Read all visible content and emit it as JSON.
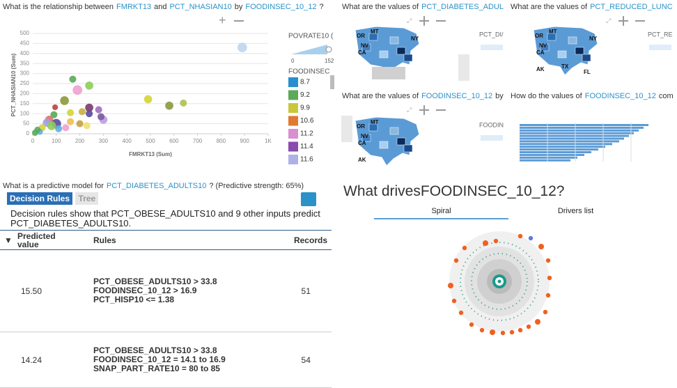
{
  "scatter_panel": {
    "question": [
      "What is the relationship between",
      "FMRKT13",
      "and",
      "PCT_NHASIAN10",
      "by",
      "FOODINSEC_10_12",
      "?"
    ]
  },
  "chart_data": {
    "type": "scatter",
    "x_label": "FMRKT13 (Sum)",
    "y_label": "PCT_NHASIAN10 (Sum)",
    "x": [
      890,
      170,
      240,
      190,
      490,
      580,
      640,
      135,
      240,
      280,
      210,
      160,
      95,
      90,
      70,
      60,
      100,
      80,
      40,
      30,
      20,
      160,
      200,
      230,
      300,
      140,
      10,
      290,
      240,
      110
    ],
    "y": [
      430,
      272,
      240,
      218,
      172,
      140,
      153,
      165,
      130,
      120,
      110,
      105,
      132,
      95,
      70,
      55,
      50,
      40,
      30,
      10,
      20,
      60,
      50,
      40,
      70,
      30,
      5,
      85,
      100,
      25
    ],
    "sizes": [
      60,
      20,
      35,
      60,
      35,
      35,
      20,
      45,
      35,
      20,
      20,
      20,
      8,
      20,
      35,
      35,
      60,
      45,
      20,
      12,
      12,
      20,
      20,
      20,
      35,
      20,
      12,
      20,
      20,
      20
    ],
    "colors": [
      "#bcd6ee",
      "#5aaa5a",
      "#8fcc5a",
      "#f0a0d0",
      "#d4d43a",
      "#8a9a3a",
      "#b0c050",
      "#8a9a3a",
      "#7a3a6a",
      "#a070c0",
      "#c8b040",
      "#d4d43a",
      "#c04040",
      "#5aaa5a",
      "#e07070",
      "#a0a0e0",
      "#5a4aa0",
      "#8fcc5a",
      "#d4d43a",
      "#60b0e0",
      "#5aaa5a",
      "#f0c050",
      "#c8a040",
      "#f0e070",
      "#b8a0e0",
      "#f0a0d0",
      "#5aaa5a",
      "#7a5aa0",
      "#5a4aa0",
      "#60b0e0"
    ],
    "xlim": [
      0,
      1000
    ],
    "xticks": [
      0,
      100,
      200,
      300,
      400,
      500,
      600,
      700,
      800,
      900,
      {
        "value": 1000,
        "label": "1K"
      }
    ],
    "ylim": [
      0,
      500
    ],
    "yticks": [
      0,
      50,
      100,
      150,
      200,
      250,
      300,
      350,
      400,
      450,
      500
    ],
    "grid": true,
    "size_legend": {
      "title": "POVRATE10 (",
      "ticks": [
        0,
        152
      ]
    },
    "color_legend": {
      "title": "FOODINSEC",
      "items": [
        {
          "label": 8.7,
          "color": "#2a8fd0"
        },
        {
          "label": 9.2,
          "color": "#5aaa5a"
        },
        {
          "label": 9.9,
          "color": "#c8c83a"
        },
        {
          "label": 10.6,
          "color": "#e07a30"
        },
        {
          "label": 11.2,
          "color": "#d890d0"
        },
        {
          "label": 11.4,
          "color": "#8a4ab0"
        },
        {
          "label": 11.6,
          "color": "#b0b0e8"
        }
      ]
    }
  },
  "map_panels": [
    {
      "question": [
        "What are the values of",
        "PCT_DIABETES_ADUL"
      ],
      "legend": "PCT_DI/",
      "states": [
        "MT",
        "OR",
        "NV",
        "CA",
        "NY"
      ]
    },
    {
      "question": [
        "What are the values of",
        "PCT_REDUCED_LUNC"
      ],
      "legend": "PCT_RE",
      "states": [
        "MT",
        "OR",
        "NV",
        "CA",
        "NY",
        "TX",
        "AK",
        "FL"
      ]
    },
    {
      "question": [
        "What are the values of",
        "FOODINSEC_10_12",
        "by"
      ],
      "legend": "FOODIN",
      "states": [
        "MT",
        "OR",
        "NV",
        "CA",
        "AK"
      ]
    }
  ],
  "bar_panel": {
    "question": [
      "How do the values of",
      "FOODINSEC_10_12",
      "com"
    ]
  },
  "model": {
    "question": [
      "What is a predictive model for",
      "PCT_DIABETES_ADULTS10",
      "? (Predictive strength: 65%)"
    ],
    "tabs": [
      "Decision Rules",
      "Tree"
    ],
    "description": "Decision rules show that PCT_OBESE_ADULTS10 and 9 other inputs predict PCT_DIABETES_ADULTS10.",
    "headers": [
      "Predicted value",
      "Rules",
      "Records"
    ],
    "rows": [
      {
        "value": "15.50",
        "rules": [
          "PCT_OBESE_ADULTS10 > 33.8",
          "FOODINSEC_10_12 > 16.9",
          "PCT_HISP10 <= 1.38"
        ],
        "records": 51
      },
      {
        "value": "14.24",
        "rules": [
          "PCT_OBESE_ADULTS10 > 33.8",
          "FOODINSEC_10_12 = 14.1 to 16.9",
          "SNAP_PART_RATE10 = 80 to 85"
        ],
        "records": 54
      }
    ]
  },
  "drivers": {
    "title": [
      "What drives",
      "FOODINSEC_10_12",
      "?"
    ],
    "tabs": [
      "Spiral",
      "Drivers list"
    ]
  }
}
